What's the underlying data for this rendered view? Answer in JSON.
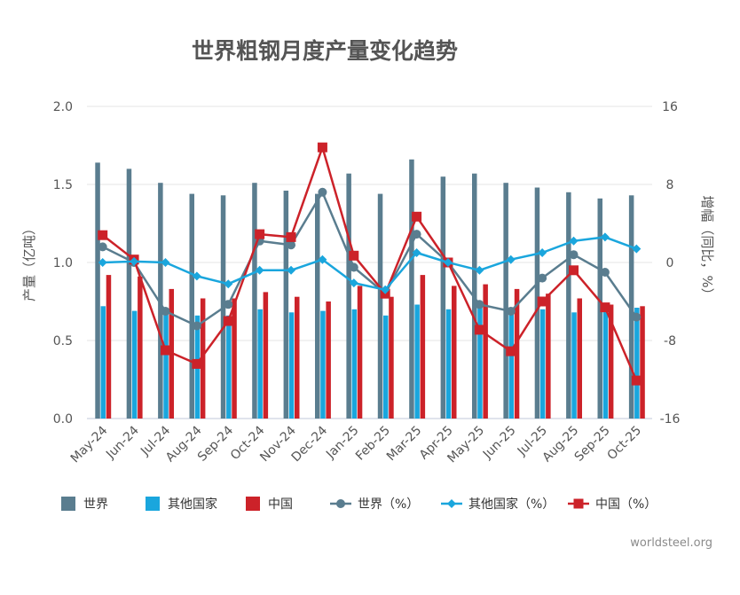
{
  "chart_data": {
    "type": "bar",
    "title": "世界粗钢月度产量变化趋势",
    "categories": [
      "May-24",
      "Jun-24",
      "Jul-24",
      "Aug-24",
      "Sep-24",
      "Oct-24",
      "Nov-24",
      "Dec-24",
      "Jan-25",
      "Feb-25",
      "Mar-25",
      "Apr-25",
      "May-25",
      "Jun-25",
      "Jul-25",
      "Aug-25",
      "Sep-25",
      "Oct-25"
    ],
    "ylabel_left": "产量（亿吨）",
    "ylabel_right": "增幅（同比，%）",
    "ylim_left": [
      0,
      2.0
    ],
    "yticks_left": [
      "0.0",
      "0.5",
      "1.0",
      "1.5",
      "2.0"
    ],
    "ylim_right": [
      -16,
      16
    ],
    "yticks_right": [
      "-16",
      "-8",
      "0",
      "8",
      "16"
    ],
    "bar_series": [
      {
        "name": "世界",
        "color": "#5a7d8f",
        "values": [
          1.64,
          1.6,
          1.51,
          1.44,
          1.43,
          1.51,
          1.46,
          1.44,
          1.57,
          1.44,
          1.66,
          1.55,
          1.57,
          1.51,
          1.48,
          1.45,
          1.41,
          1.43
        ]
      },
      {
        "name": "其他国家",
        "color": "#1aa6dd",
        "values": [
          0.72,
          0.69,
          0.68,
          0.66,
          0.66,
          0.7,
          0.68,
          0.69,
          0.7,
          0.66,
          0.73,
          0.7,
          0.71,
          0.69,
          0.7,
          0.68,
          0.7,
          0.71
        ]
      },
      {
        "name": "中国",
        "color": "#cc2229",
        "values": [
          0.92,
          0.91,
          0.83,
          0.77,
          0.77,
          0.81,
          0.78,
          0.75,
          0.85,
          0.78,
          0.92,
          0.85,
          0.86,
          0.83,
          0.8,
          0.77,
          0.73,
          0.72
        ]
      }
    ],
    "line_series": [
      {
        "name": "世界（%）",
        "color": "#5a7d8f",
        "marker": "circle",
        "values": [
          1.6,
          0.0,
          -5.0,
          -6.5,
          -4.3,
          2.2,
          1.8,
          7.2,
          -0.5,
          -3.2,
          2.9,
          0.0,
          -4.3,
          -5.0,
          -1.6,
          0.8,
          -1.0,
          -5.6
        ]
      },
      {
        "name": "其他国家（%）",
        "color": "#1aa6dd",
        "marker": "diamond",
        "values": [
          0.0,
          0.1,
          0.0,
          -1.4,
          -2.2,
          -0.8,
          -0.8,
          0.3,
          -2.1,
          -2.8,
          1.0,
          0.0,
          -0.8,
          0.3,
          1.0,
          2.2,
          2.6,
          1.4
        ]
      },
      {
        "name": "中国（%）",
        "color": "#cc2229",
        "marker": "square",
        "values": [
          2.8,
          0.3,
          -9.0,
          -10.4,
          -6.0,
          2.9,
          2.6,
          11.8,
          0.7,
          -3.2,
          4.7,
          0.0,
          -6.9,
          -9.1,
          -4.0,
          -0.8,
          -4.6,
          -12.1
        ]
      }
    ],
    "legend": {
      "placement": "bottom",
      "items": [
        "世界",
        "其他国家",
        "中国",
        "世界（%）",
        "其他国家（%）",
        "中国（%）"
      ]
    }
  },
  "credit": "worldsteel.org"
}
